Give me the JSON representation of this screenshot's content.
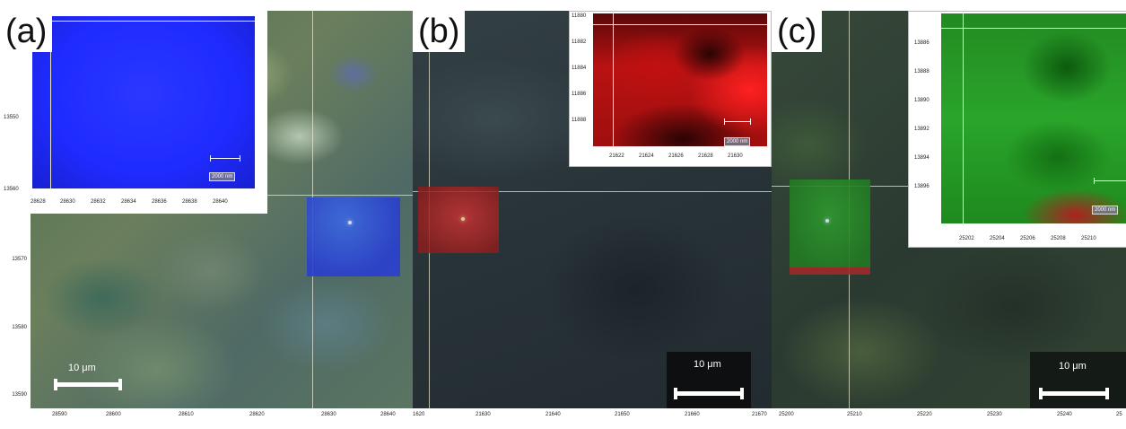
{
  "panels": [
    {
      "id": "a",
      "letter": "(a)",
      "scale_label": "10 μm",
      "x_ticks": [
        "28590",
        "28600",
        "28610",
        "28620",
        "28630",
        "28640"
      ],
      "y_ticks": [
        "13570",
        "13580",
        "13590"
      ],
      "inset": {
        "scale_label": "2000 nm",
        "x_ticks": [
          "28628",
          "28630",
          "28632",
          "28634",
          "28636",
          "28638",
          "28640"
        ],
        "y_ticks": [
          "13550",
          "13560"
        ],
        "map_color": "#1f2bff"
      }
    },
    {
      "id": "b",
      "letter": "(b)",
      "scale_label": "10 μm",
      "x_ticks": [
        "1620",
        "21630",
        "21640",
        "21650",
        "21660",
        "21670"
      ],
      "inset": {
        "scale_label": "2000 nm",
        "x_ticks": [
          "21622",
          "21624",
          "21626",
          "21628",
          "21630"
        ],
        "y_ticks": [
          "11880",
          "11882",
          "11884",
          "11886",
          "11888"
        ],
        "map_color": "#e01010"
      }
    },
    {
      "id": "c",
      "letter": "(c)",
      "scale_label": "10 μm",
      "x_ticks": [
        "25200",
        "25210",
        "25220",
        "25230",
        "25240",
        "25"
      ],
      "inset": {
        "scale_label": "2000 nm",
        "x_ticks": [
          "25202",
          "25204",
          "25206",
          "25208",
          "25210"
        ],
        "y_ticks": [
          "13886",
          "13888",
          "13890",
          "13892",
          "13894",
          "13896"
        ],
        "map_color": "#1fa01f"
      }
    }
  ]
}
